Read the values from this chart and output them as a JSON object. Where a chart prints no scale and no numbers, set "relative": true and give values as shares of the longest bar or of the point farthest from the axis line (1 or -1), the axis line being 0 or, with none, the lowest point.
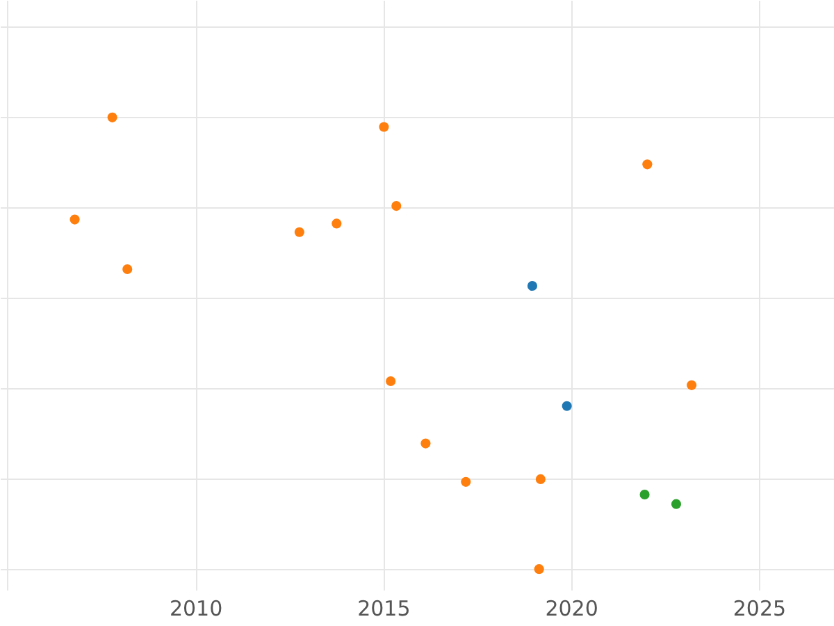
{
  "chart_data": {
    "type": "scatter",
    "relative": true,
    "tick_labels": "x",
    "grid": true,
    "legend": false,
    "marker": "circle",
    "xlim": [
      2004.8,
      2027
    ],
    "xticks": [
      {
        "value": 2005,
        "label": null
      },
      2010,
      2015,
      2020,
      2025
    ],
    "series": [
      {
        "color": "#ff7f0e",
        "x": [
          2007.79,
          2015.02,
          2022.03,
          2006.79,
          2015.35,
          2012.77,
          2013.76,
          2008.19,
          2015.2,
          2023.21,
          2016.13,
          2017.2,
          2019.19,
          2019.15
        ],
        "values": [
          1,
          0.979,
          0.896,
          0.774,
          0.804,
          0.746,
          0.765,
          0.664,
          0.416,
          0.407,
          0.278,
          0.193,
          0.199,
          0
        ]
      },
      {
        "color": "#1f77b4",
        "x": [
          2018.97,
          2019.89
        ],
        "values": [
          0.627,
          0.361
        ]
      },
      {
        "color": "#2ca02c",
        "x": [
          2021.96,
          2022.8
        ],
        "values": [
          0.165,
          0.144
        ]
      }
    ]
  }
}
